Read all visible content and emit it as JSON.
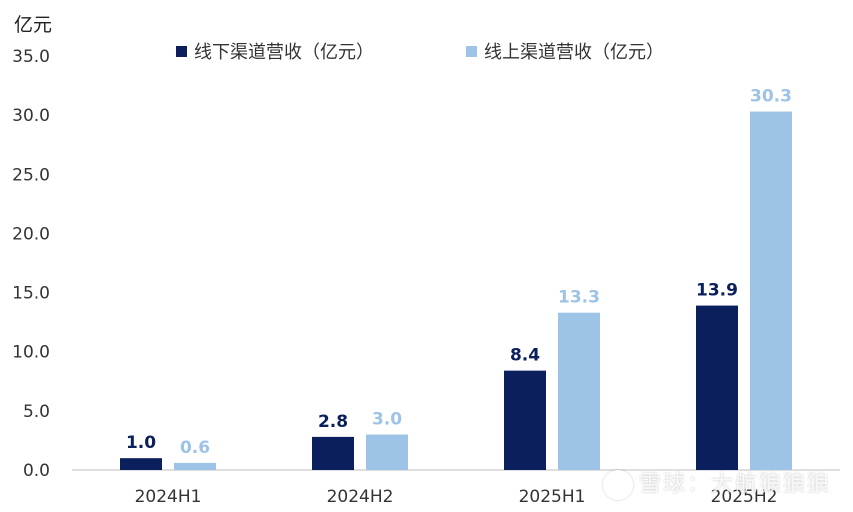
{
  "unit_label": "亿元",
  "watermark": "雪球：大航狼狼狼",
  "colors": {
    "offline": "#0b1f5c",
    "online": "#9dc3e6",
    "axis": "#bfbfbf",
    "text": "#333333"
  },
  "chart_data": {
    "type": "bar",
    "categories": [
      "2024H1",
      "2024H2",
      "2025H1",
      "2025H2"
    ],
    "series": [
      {
        "name": "线下渠道营收（亿元）",
        "values": [
          1.0,
          2.8,
          8.4,
          13.9
        ],
        "labels": [
          "1.0",
          "2.8",
          "8.4",
          "13.9"
        ]
      },
      {
        "name": "线上渠道营收（亿元）",
        "values": [
          0.6,
          3.0,
          13.3,
          30.3
        ],
        "labels": [
          "0.6",
          "3.0",
          "13.3",
          "30.3"
        ]
      }
    ],
    "ylim": [
      0,
      35
    ],
    "yticks": [
      "0.0",
      "5.0",
      "10.0",
      "15.0",
      "20.0",
      "25.0",
      "30.0",
      "35.0"
    ],
    "ytick_values": [
      0,
      5,
      10,
      15,
      20,
      25,
      30,
      35
    ],
    "grid": false,
    "legend": "top"
  }
}
